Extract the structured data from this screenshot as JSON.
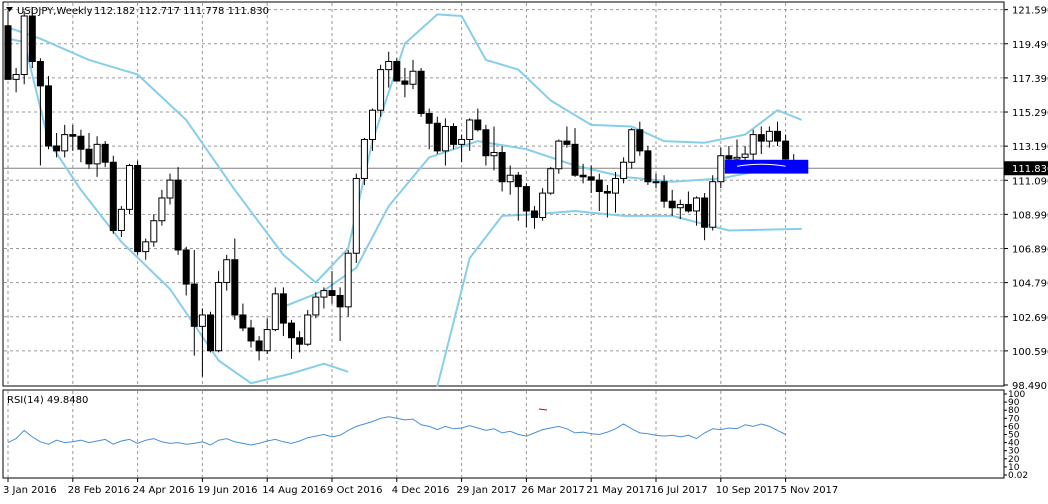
{
  "header": {
    "symbol": "USDJPY,Weekly",
    "ohlc": "112.182 112.717 111.778 111.830"
  },
  "rsi_header": {
    "label": "RSI(14) 49.8480"
  },
  "colors": {
    "background": "#ffffff",
    "grid": "#9a9a9a",
    "candle": "#000000",
    "bands": "#87ceeb",
    "rsi_line": "#4a90d9",
    "annotation": "#0000ff",
    "price_label_bg": "#000000",
    "price_label_text": "#ffffff"
  },
  "chart_data": [
    {
      "type": "candlestick",
      "title": "USDJPY,Weekly",
      "ylim": [
        98.49,
        122.0
      ],
      "y_ticks": [
        "121.590",
        "119.490",
        "117.390",
        "115.290",
        "113.190",
        "111.090",
        "108.990",
        "106.890",
        "104.790",
        "102.690",
        "100.590",
        "98.490"
      ],
      "x_tick_labels": [
        "3 Jan 2016",
        "28 Feb 2016",
        "24 Apr 2016",
        "19 Jun 2016",
        "14 Aug 2016",
        "9 Oct 2016",
        "4 Dec 2016",
        "29 Jan 2017",
        "26 Mar 2017",
        "21 May 2017",
        "16 Jul 2017",
        "10 Sep 2017",
        "5 Nov 2017"
      ],
      "x_tick_index": [
        0,
        8,
        16,
        24,
        32,
        40,
        48,
        56,
        64,
        72,
        80,
        88,
        96
      ],
      "grid": true,
      "current_price": 111.83,
      "current_price_label": "111.830",
      "candles": [
        [
          120.6,
          121.5,
          117.3,
          117.3
        ],
        [
          117.3,
          118.0,
          116.5,
          117.6
        ],
        [
          117.6,
          121.5,
          117.0,
          121.2
        ],
        [
          121.2,
          121.7,
          118.0,
          118.4
        ],
        [
          118.4,
          118.6,
          112.0,
          116.9
        ],
        [
          116.9,
          117.5,
          113.0,
          113.2
        ],
        [
          113.2,
          114.0,
          112.5,
          112.9
        ],
        [
          112.9,
          114.5,
          112.5,
          113.9
        ],
        [
          113.9,
          114.5,
          112.9,
          113.8
        ],
        [
          113.8,
          114.2,
          112.2,
          113.0
        ],
        [
          113.0,
          114.0,
          111.8,
          112.1
        ],
        [
          112.1,
          113.8,
          111.3,
          113.3
        ],
        [
          113.3,
          113.5,
          111.9,
          112.2
        ],
        [
          112.2,
          112.6,
          107.8,
          108.0
        ],
        [
          108.0,
          109.5,
          107.6,
          109.3
        ],
        [
          109.3,
          112.1,
          109.0,
          112.0
        ],
        [
          112.0,
          112.3,
          106.5,
          106.7
        ],
        [
          106.7,
          107.5,
          106.2,
          107.3
        ],
        [
          107.3,
          109.0,
          107.0,
          108.6
        ],
        [
          108.6,
          110.5,
          108.3,
          110.0
        ],
        [
          110.0,
          111.5,
          109.6,
          111.1
        ],
        [
          111.1,
          111.9,
          106.5,
          106.8
        ],
        [
          106.8,
          107.0,
          104.0,
          104.7
        ],
        [
          104.7,
          106.8,
          100.3,
          102.1
        ],
        [
          102.1,
          103.2,
          99.0,
          102.8
        ],
        [
          102.8,
          103.0,
          100.5,
          100.6
        ],
        [
          100.6,
          105.5,
          100.5,
          104.8
        ],
        [
          104.8,
          106.5,
          104.3,
          106.2
        ],
        [
          106.2,
          107.5,
          102.5,
          102.8
        ],
        [
          102.8,
          103.5,
          101.8,
          102.0
        ],
        [
          102.0,
          102.5,
          100.8,
          101.2
        ],
        [
          101.2,
          101.5,
          100.0,
          100.6
        ],
        [
          100.6,
          102.6,
          100.4,
          101.9
        ],
        [
          101.9,
          104.5,
          101.8,
          104.1
        ],
        [
          104.1,
          104.5,
          101.5,
          102.3
        ],
        [
          102.3,
          102.5,
          100.1,
          101.4
        ],
        [
          101.4,
          101.8,
          100.5,
          101.0
        ],
        [
          101.0,
          103.1,
          100.9,
          102.8
        ],
        [
          102.8,
          104.2,
          102.6,
          103.9
        ],
        [
          103.9,
          104.5,
          103.2,
          104.3
        ],
        [
          104.3,
          105.5,
          103.5,
          104.0
        ],
        [
          104.0,
          104.5,
          101.2,
          103.3
        ],
        [
          103.3,
          106.8,
          102.7,
          106.6
        ],
        [
          106.6,
          111.5,
          106.0,
          111.2
        ],
        [
          111.2,
          113.7,
          110.8,
          113.6
        ],
        [
          113.6,
          115.5,
          112.9,
          115.4
        ],
        [
          115.4,
          118.2,
          115.0,
          117.9
        ],
        [
          117.9,
          119.0,
          116.8,
          118.4
        ],
        [
          118.4,
          118.6,
          117.2,
          117.2
        ],
        [
          117.2,
          118.0,
          116.2,
          117.0
        ],
        [
          117.0,
          118.5,
          116.7,
          117.8
        ],
        [
          117.8,
          118.0,
          115.0,
          115.2
        ],
        [
          115.2,
          115.5,
          113.0,
          114.6
        ],
        [
          114.6,
          115.0,
          112.7,
          112.9
        ],
        [
          112.9,
          114.9,
          112.0,
          114.4
        ],
        [
          114.4,
          114.6,
          113.0,
          113.3
        ],
        [
          113.3,
          113.9,
          112.2,
          113.6
        ],
        [
          113.6,
          114.9,
          112.9,
          114.8
        ],
        [
          114.8,
          115.5,
          114.1,
          114.2
        ],
        [
          114.2,
          114.5,
          112.0,
          112.6
        ],
        [
          112.6,
          114.4,
          111.7,
          112.8
        ],
        [
          112.8,
          113.2,
          110.4,
          111.0
        ],
        [
          111.0,
          112.0,
          110.2,
          111.4
        ],
        [
          111.4,
          111.6,
          108.6,
          110.7
        ],
        [
          110.7,
          110.9,
          108.2,
          109.2
        ],
        [
          109.2,
          109.5,
          108.1,
          108.8
        ],
        [
          108.8,
          110.6,
          108.6,
          110.3
        ],
        [
          110.3,
          111.9,
          110.2,
          111.8
        ],
        [
          111.8,
          113.6,
          111.5,
          113.5
        ],
        [
          113.5,
          114.4,
          113.1,
          113.3
        ],
        [
          113.3,
          114.3,
          111.3,
          111.4
        ],
        [
          111.4,
          112.1,
          110.9,
          111.3
        ],
        [
          111.3,
          112.0,
          110.3,
          111.1
        ],
        [
          111.1,
          111.5,
          109.2,
          110.4
        ],
        [
          110.4,
          110.8,
          108.8,
          110.3
        ],
        [
          110.3,
          111.6,
          109.1,
          111.2
        ],
        [
          111.2,
          112.5,
          110.9,
          112.2
        ],
        [
          112.2,
          114.3,
          111.8,
          114.2
        ],
        [
          114.2,
          114.7,
          112.6,
          112.9
        ],
        [
          112.9,
          113.2,
          110.8,
          111.0
        ],
        [
          111.0,
          111.5,
          110.6,
          111.0
        ],
        [
          111.0,
          111.4,
          109.4,
          109.8
        ],
        [
          109.8,
          110.5,
          108.9,
          109.4
        ],
        [
          109.4,
          109.9,
          108.7,
          109.6
        ],
        [
          109.6,
          110.4,
          109.1,
          109.2
        ],
        [
          109.2,
          110.1,
          108.3,
          110.0
        ],
        [
          110.0,
          110.3,
          107.4,
          108.2
        ],
        [
          108.2,
          111.4,
          108.0,
          111.0
        ],
        [
          111.0,
          113.1,
          110.6,
          112.6
        ],
        [
          112.6,
          113.2,
          111.7,
          112.4
        ],
        [
          112.4,
          113.6,
          111.9,
          112.5
        ],
        [
          112.5,
          113.2,
          111.9,
          112.7
        ],
        [
          112.7,
          114.2,
          112.3,
          113.9
        ],
        [
          113.9,
          114.4,
          112.7,
          113.5
        ],
        [
          113.5,
          114.4,
          113.1,
          114.1
        ],
        [
          114.1,
          114.7,
          113.2,
          113.5
        ],
        [
          113.5,
          113.9,
          112.4,
          112.4
        ],
        [
          112.2,
          112.7,
          111.78,
          111.83
        ]
      ],
      "bands": {
        "upper": [
          {
            "i": 0,
            "y": 120.5
          },
          {
            "i": 4,
            "y": 119.8
          },
          {
            "i": 10,
            "y": 118.5
          },
          {
            "i": 16,
            "y": 117.6
          },
          {
            "i": 22,
            "y": 114.8
          },
          {
            "i": 28,
            "y": 110.5
          },
          {
            "i": 34,
            "y": 106.5
          },
          {
            "i": 38,
            "y": 104.8
          },
          {
            "i": 42,
            "y": 106.9
          },
          {
            "i": 45,
            "y": 113.5
          },
          {
            "i": 49,
            "y": 119.5
          },
          {
            "i": 53,
            "y": 121.3
          },
          {
            "i": 56,
            "y": 121.2
          },
          {
            "i": 59,
            "y": 118.5
          },
          {
            "i": 63,
            "y": 117.9
          },
          {
            "i": 67,
            "y": 116.0
          },
          {
            "i": 72,
            "y": 114.5
          },
          {
            "i": 77,
            "y": 114.4
          },
          {
            "i": 81,
            "y": 113.5
          },
          {
            "i": 86,
            "y": 113.4
          },
          {
            "i": 91,
            "y": 113.9
          },
          {
            "i": 95,
            "y": 115.4
          },
          {
            "i": 98,
            "y": 114.8
          }
        ],
        "lower": [
          {
            "i": 0,
            "y": 119.8
          },
          {
            "i": 2,
            "y": 119.6
          },
          {
            "i": 5,
            "y": 113.5
          },
          {
            "i": 9,
            "y": 110.5
          },
          {
            "i": 14,
            "y": 107.3
          },
          {
            "i": 20,
            "y": 104.4
          },
          {
            "i": 26,
            "y": 100.0
          },
          {
            "i": 30,
            "y": 98.6
          },
          {
            "i": 35,
            "y": 99.2
          },
          {
            "i": 39,
            "y": 99.8
          },
          {
            "i": 42,
            "y": 99.3
          }
        ],
        "lower2": [
          {
            "i": 53,
            "y": 98.4
          },
          {
            "i": 57,
            "y": 106.3
          },
          {
            "i": 61,
            "y": 108.9
          },
          {
            "i": 65,
            "y": 109.0
          },
          {
            "i": 70,
            "y": 109.2
          },
          {
            "i": 76,
            "y": 108.9
          },
          {
            "i": 82,
            "y": 108.9
          },
          {
            "i": 89,
            "y": 108.0
          },
          {
            "i": 98,
            "y": 108.1
          }
        ],
        "middle": [
          {
            "i": 34,
            "y": 103.3
          },
          {
            "i": 39,
            "y": 104.3
          },
          {
            "i": 43,
            "y": 105.7
          },
          {
            "i": 47,
            "y": 109.5
          },
          {
            "i": 52,
            "y": 112.5
          },
          {
            "i": 58,
            "y": 113.5
          },
          {
            "i": 64,
            "y": 113.0
          },
          {
            "i": 70,
            "y": 112.0
          },
          {
            "i": 76,
            "y": 111.3
          },
          {
            "i": 82,
            "y": 111.0
          },
          {
            "i": 88,
            "y": 111.2
          },
          {
            "i": 94,
            "y": 111.8
          },
          {
            "i": 98,
            "y": 112.0
          }
        ]
      },
      "annotation_box": {
        "i0": 88.5,
        "i1": 98.8,
        "y0": 111.5,
        "y1": 112.35
      }
    },
    {
      "type": "line",
      "title": "RSI(14) 49.8480",
      "ylim": [
        0,
        100
      ],
      "y_ticks": [
        "100",
        "90",
        "80",
        "70",
        "60",
        "50",
        "40",
        "30",
        "20",
        "10",
        "0.02"
      ],
      "y_tick_values": [
        100,
        90,
        80,
        70,
        60,
        50,
        40,
        30,
        20,
        10,
        0.02
      ],
      "series": [
        {
          "values": [
            40,
            45,
            55,
            47,
            41,
            38,
            43,
            40,
            41,
            43,
            40,
            42,
            44,
            38,
            42,
            44,
            39,
            43,
            45,
            41,
            39,
            40,
            38,
            39,
            41,
            37,
            43,
            45,
            41,
            39,
            37,
            39,
            42,
            44,
            41,
            39,
            42,
            46,
            48,
            50,
            47,
            49,
            55,
            60,
            63,
            66,
            70,
            72,
            70,
            68,
            69,
            62,
            60,
            56,
            60,
            57,
            58,
            61,
            58,
            55,
            57,
            52,
            54,
            50,
            48,
            52,
            56,
            58,
            60,
            57,
            52,
            53,
            51,
            50,
            53,
            57,
            63,
            57,
            52,
            51,
            49,
            48,
            49,
            47,
            49,
            45,
            52,
            57,
            56,
            58,
            57,
            62,
            60,
            63,
            60,
            55,
            50
          ]
        }
      ]
    }
  ]
}
